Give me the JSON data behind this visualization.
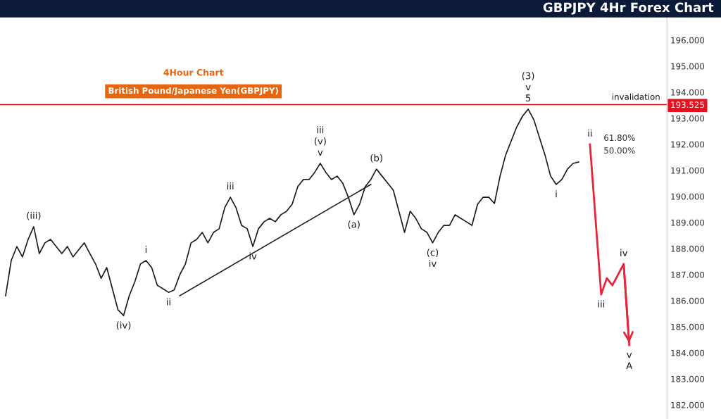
{
  "chart_data": {
    "type": "line",
    "title": "GBPJPY 4Hr Forex Chart",
    "subtitle": "4Hour Chart",
    "categories": [
      null,
      null,
      null,
      null,
      null,
      null,
      null,
      null,
      null,
      null,
      null,
      null,
      null,
      null,
      null,
      null,
      null,
      null,
      null,
      null,
      null,
      null,
      null,
      null,
      null,
      null,
      null,
      null,
      null,
      null,
      null,
      null,
      null,
      null,
      null,
      null,
      null,
      null,
      null,
      null,
      null,
      null,
      null,
      null,
      null,
      null,
      null,
      null,
      null,
      null,
      null,
      null,
      null,
      null,
      null,
      null,
      null,
      null,
      null,
      null,
      null,
      null,
      null,
      null,
      null,
      null,
      null,
      null,
      null,
      null,
      null,
      null,
      null,
      null,
      null,
      null,
      null,
      null,
      null,
      null,
      null,
      null,
      null,
      null,
      null,
      null,
      null,
      null,
      null,
      null,
      null,
      null,
      null,
      null,
      null,
      null,
      null,
      null,
      null,
      null,
      null,
      null,
      null,
      null,
      null,
      null,
      null,
      null,
      null,
      null,
      null,
      null
    ],
    "ylim": [
      181.46,
      196.89
    ],
    "yticks": [
      {
        "value": 182,
        "label": "182.000"
      },
      {
        "value": 183,
        "label": "183.000"
      },
      {
        "value": 184,
        "label": "184.000"
      },
      {
        "value": 185,
        "label": "185.000"
      },
      {
        "value": 186,
        "label": "186.000"
      },
      {
        "value": 187,
        "label": "187.000"
      },
      {
        "value": 188,
        "label": "188.000"
      },
      {
        "value": 189,
        "label": "189.000"
      },
      {
        "value": 190,
        "label": "190.000"
      },
      {
        "value": 191,
        "label": "191.000"
      },
      {
        "value": 192,
        "label": "192.000"
      },
      {
        "value": 193,
        "label": "193.000"
      },
      {
        "value": 193.525,
        "label": "193.525"
      },
      {
        "value": 194,
        "label": "194.000"
      },
      {
        "value": 195,
        "label": "195.000"
      },
      {
        "value": 196,
        "label": "196.000"
      }
    ],
    "tick_labels": "y",
    "series": [
      {
        "color": "#1a1a1a",
        "values": [
          186.19,
          187.54,
          188.08,
          187.68,
          188.35,
          188.84,
          187.81,
          188.22,
          188.35,
          188.08,
          187.81,
          188.08,
          187.68,
          187.95,
          188.22,
          187.81,
          187.41,
          186.86,
          187.27,
          186.46,
          185.65,
          185.43,
          186.19,
          186.73,
          187.41,
          187.54,
          187.27,
          186.59,
          186.46,
          186.32,
          186.41,
          187.0,
          187.41,
          188.22,
          188.35,
          188.62,
          188.22,
          188.62,
          188.76,
          189.57,
          189.97,
          189.57,
          188.89,
          188.76,
          188.08,
          188.76,
          189.03,
          189.16,
          189.03,
          189.3,
          189.43,
          189.7,
          190.38,
          190.65,
          190.65,
          190.92,
          191.27,
          190.92,
          190.65,
          190.78,
          190.51,
          189.97,
          189.3,
          189.7,
          190.38,
          190.65,
          191.05,
          190.78,
          190.51,
          190.24,
          189.43,
          188.62,
          189.43,
          189.16,
          188.76,
          188.62,
          188.22,
          188.62,
          188.89,
          188.89,
          189.3,
          189.16,
          189.03,
          188.89,
          189.7,
          189.97,
          189.97,
          189.73,
          190.78,
          191.59,
          192.14,
          192.68,
          193.08,
          193.35,
          192.95,
          192.27,
          191.59,
          190.78,
          190.46,
          190.65,
          191.05,
          191.27,
          191.32,
          null,
          null,
          null,
          null,
          null,
          null,
          null,
          null,
          null
        ],
        "value_labels": [
          null,
          null,
          null,
          null,
          null,
          "(iii)",
          null,
          null,
          null,
          null,
          null,
          null,
          null,
          null,
          null,
          null,
          null,
          null,
          null,
          null,
          null,
          "(iv)",
          null,
          null,
          null,
          "i",
          null,
          null,
          null,
          "ii",
          null,
          null,
          null,
          null,
          null,
          null,
          null,
          null,
          null,
          null,
          "iii",
          null,
          null,
          null,
          "iv",
          null,
          null,
          null,
          null,
          null,
          null,
          null,
          null,
          null,
          null,
          null,
          "iii\n(v)\nv",
          null,
          null,
          null,
          null,
          null,
          "(a)",
          null,
          null,
          null,
          "(b)",
          null,
          null,
          null,
          null,
          null,
          null,
          null,
          null,
          null,
          "(c)\niv",
          null,
          null,
          null,
          null,
          null,
          null,
          null,
          null,
          null,
          null,
          null,
          null,
          null,
          null,
          null,
          null,
          "(3)\nv\n5",
          null,
          null,
          null,
          null,
          "i",
          null,
          null,
          null,
          null,
          null,
          null,
          null,
          null,
          null,
          null,
          null,
          null,
          null
        ]
      },
      {
        "color": "#e8233a",
        "values": [
          null,
          null,
          null,
          null,
          null,
          null,
          null,
          null,
          null,
          null,
          null,
          null,
          null,
          null,
          null,
          null,
          null,
          null,
          null,
          null,
          null,
          null,
          null,
          null,
          null,
          null,
          null,
          null,
          null,
          null,
          null,
          null,
          null,
          null,
          null,
          null,
          null,
          null,
          null,
          null,
          null,
          null,
          null,
          null,
          null,
          null,
          null,
          null,
          null,
          null,
          null,
          null,
          null,
          null,
          null,
          null,
          null,
          null,
          null,
          null,
          null,
          null,
          null,
          null,
          null,
          null,
          null,
          null,
          null,
          null,
          null,
          null,
          null,
          null,
          null,
          null,
          null,
          null,
          null,
          null,
          null,
          null,
          null,
          null,
          null,
          null,
          null,
          null,
          null,
          null,
          null,
          null,
          null,
          null,
          null,
          null,
          null,
          null,
          null,
          null,
          null,
          null,
          null,
          null,
          192.0,
          null,
          186.24,
          186.86,
          186.59,
          null,
          187.41,
          184.3
        ],
        "value_labels": [
          null,
          null,
          null,
          null,
          null,
          null,
          null,
          null,
          null,
          null,
          null,
          null,
          null,
          null,
          null,
          null,
          null,
          null,
          null,
          null,
          null,
          null,
          null,
          null,
          null,
          null,
          null,
          null,
          null,
          null,
          null,
          null,
          null,
          null,
          null,
          null,
          null,
          null,
          null,
          null,
          null,
          null,
          null,
          null,
          null,
          null,
          null,
          null,
          null,
          null,
          null,
          null,
          null,
          null,
          null,
          null,
          null,
          null,
          null,
          null,
          null,
          null,
          null,
          null,
          null,
          null,
          null,
          null,
          null,
          null,
          null,
          null,
          null,
          null,
          null,
          null,
          null,
          null,
          null,
          null,
          null,
          null,
          null,
          null,
          null,
          null,
          null,
          null,
          null,
          null,
          null,
          null,
          null,
          null,
          null,
          null,
          null,
          null,
          null,
          null,
          null,
          null,
          null,
          null,
          "ii",
          null,
          "iii",
          null,
          null,
          null,
          "iv",
          "v\nA"
        ]
      },
      {
        "color": "#1a1a1a",
        "values": [
          null,
          null,
          null,
          null,
          null,
          null,
          null,
          null,
          null,
          null,
          null,
          null,
          null,
          null,
          null,
          null,
          null,
          null,
          null,
          null,
          null,
          null,
          null,
          null,
          null,
          null,
          null,
          null,
          null,
          null,
          null,
          186.19,
          null,
          null,
          null,
          null,
          null,
          null,
          null,
          null,
          null,
          null,
          null,
          null,
          null,
          null,
          null,
          null,
          null,
          null,
          null,
          null,
          null,
          null,
          null,
          null,
          null,
          null,
          null,
          null,
          null,
          null,
          null,
          null,
          null,
          190.46,
          null,
          null,
          null,
          null,
          null,
          null,
          null,
          null,
          null,
          null,
          null,
          null,
          null,
          null,
          null,
          null,
          null,
          null,
          null,
          null,
          null,
          null,
          null,
          null,
          null,
          null,
          null,
          null,
          null,
          null,
          null,
          null,
          null,
          null,
          null,
          null,
          null,
          null,
          null,
          null,
          null,
          null,
          null,
          null,
          null,
          null
        ]
      }
    ],
    "ref_lines": [
      {
        "axis": "y",
        "value": 193.525,
        "label": "invalidation",
        "color": "#e8101e"
      }
    ],
    "annotations": [
      "British Pound/Japanese Yen(GBPJPY)",
      "61.80%",
      "50.00%"
    ]
  }
}
